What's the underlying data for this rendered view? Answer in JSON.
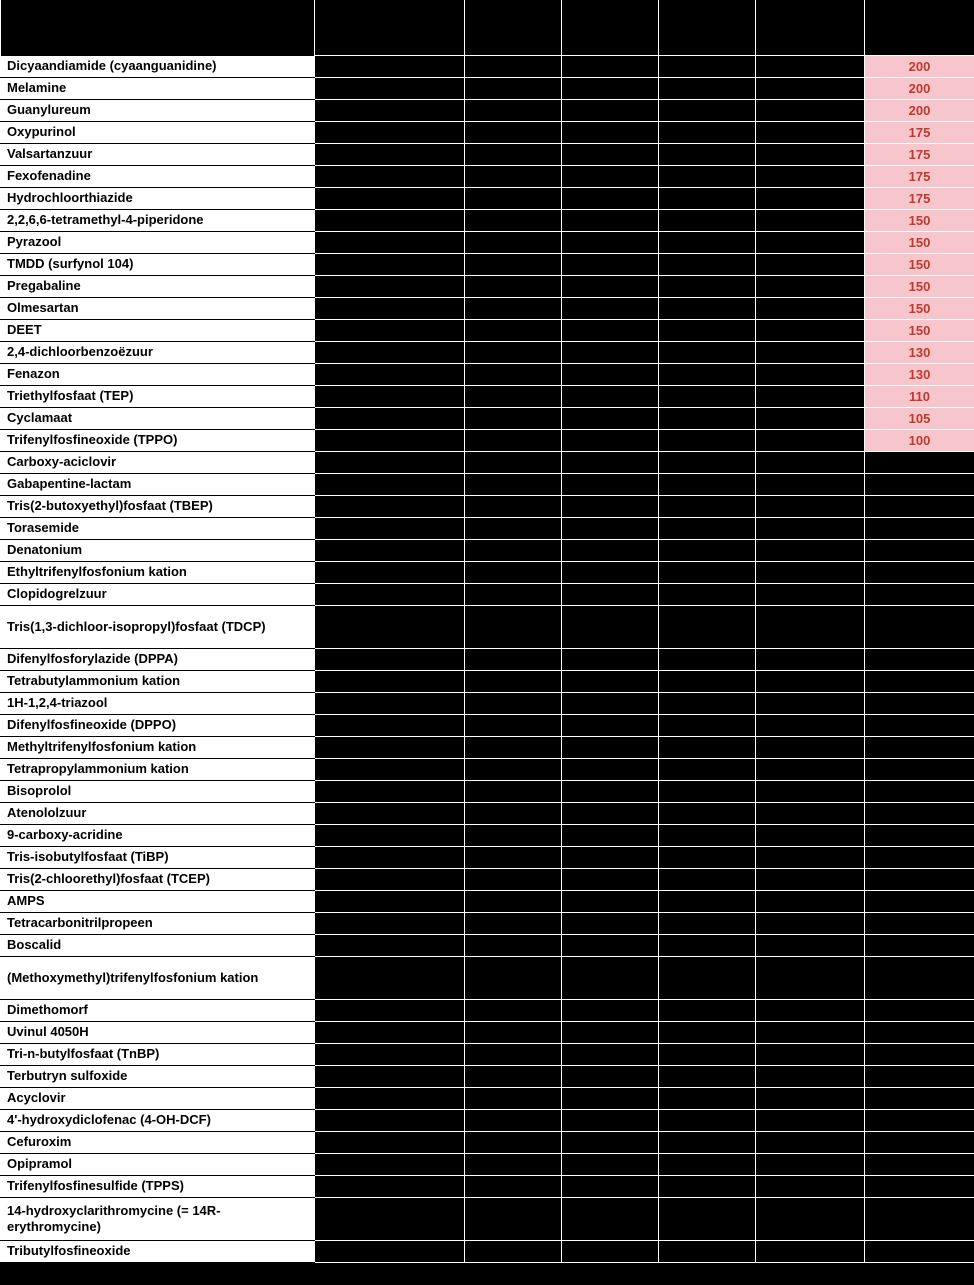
{
  "table": {
    "highlight_bg": "#f7c5cc",
    "highlight_fg": "#c0392b",
    "name_bg": "#ffffff",
    "name_fg": "#000000",
    "blank_bg": "#000000",
    "border_color": "#ffffff",
    "font_size_pt": 10,
    "rows": [
      {
        "name": "Dicyaandiamide (cyaanguanidine)",
        "value": 200,
        "highlight": true
      },
      {
        "name": "Melamine",
        "value": 200,
        "highlight": true
      },
      {
        "name": "Guanylureum",
        "value": 200,
        "highlight": true
      },
      {
        "name": "Oxypurinol",
        "value": 175,
        "highlight": true
      },
      {
        "name": "Valsartanzuur",
        "value": 175,
        "highlight": true
      },
      {
        "name": "Fexofenadine",
        "value": 175,
        "highlight": true
      },
      {
        "name": "Hydrochloorthiazide",
        "value": 175,
        "highlight": true
      },
      {
        "name": "2,2,6,6-tetramethyl-4-piperidone",
        "value": 150,
        "highlight": true
      },
      {
        "name": "Pyrazool",
        "value": 150,
        "highlight": true
      },
      {
        "name": "TMDD (surfynol 104)",
        "value": 150,
        "highlight": true
      },
      {
        "name": "Pregabaline",
        "value": 150,
        "highlight": true
      },
      {
        "name": "Olmesartan",
        "value": 150,
        "highlight": true
      },
      {
        "name": "DEET",
        "value": 150,
        "highlight": true
      },
      {
        "name": "2,4-dichloorbenzoëzuur",
        "value": 130,
        "highlight": true
      },
      {
        "name": "Fenazon",
        "value": 130,
        "highlight": true
      },
      {
        "name": "Triethylfosfaat (TEP)",
        "value": 110,
        "highlight": true
      },
      {
        "name": "Cyclamaat",
        "value": 105,
        "highlight": true
      },
      {
        "name": "Trifenylfosfineoxide (TPPO)",
        "value": 100,
        "highlight": true
      },
      {
        "name": "Carboxy-aciclovir",
        "value": null,
        "highlight": false
      },
      {
        "name": "Gabapentine-lactam",
        "value": null,
        "highlight": false
      },
      {
        "name": "Tris(2-butoxyethyl)fosfaat (TBEP)",
        "value": null,
        "highlight": false
      },
      {
        "name": "Torasemide",
        "value": null,
        "highlight": false
      },
      {
        "name": "Denatonium",
        "value": null,
        "highlight": false
      },
      {
        "name": "Ethyltrifenylfosfonium kation",
        "value": null,
        "highlight": false
      },
      {
        "name": "Clopidogrelzuur",
        "value": null,
        "highlight": false
      },
      {
        "name": "Tris(1,3-dichloor-isopropyl)fosfaat (TDCP)",
        "value": null,
        "highlight": false,
        "tall": true
      },
      {
        "name": "Difenylfosforylazide (DPPA)",
        "value": null,
        "highlight": false
      },
      {
        "name": "Tetrabutylammonium kation",
        "value": null,
        "highlight": false
      },
      {
        "name": "1H-1,2,4-triazool",
        "value": null,
        "highlight": false
      },
      {
        "name": "Difenylfosfineoxide (DPPO)",
        "value": null,
        "highlight": false
      },
      {
        "name": "Methyltrifenylfosfonium kation",
        "value": null,
        "highlight": false
      },
      {
        "name": "Tetrapropylammonium kation",
        "value": null,
        "highlight": false
      },
      {
        "name": "Bisoprolol",
        "value": null,
        "highlight": false
      },
      {
        "name": "Atenololzuur",
        "value": null,
        "highlight": false
      },
      {
        "name": "9-carboxy-acridine",
        "value": null,
        "highlight": false
      },
      {
        "name": "Tris-isobutylfosfaat (TiBP)",
        "value": null,
        "highlight": false
      },
      {
        "name": "Tris(2-chloorethyl)fosfaat (TCEP)",
        "value": null,
        "highlight": false
      },
      {
        "name": "AMPS",
        "value": null,
        "highlight": false
      },
      {
        "name": "Tetracarbonitrilpropeen",
        "value": null,
        "highlight": false
      },
      {
        "name": "Boscalid",
        "value": null,
        "highlight": false
      },
      {
        "name": "(Methoxymethyl)trifenylfosfonium kation",
        "value": null,
        "highlight": false,
        "tall": true
      },
      {
        "name": "Dimethomorf",
        "value": null,
        "highlight": false
      },
      {
        "name": "Uvinul 4050H",
        "value": null,
        "highlight": false
      },
      {
        "name": "Tri-n-butylfosfaat (TnBP)",
        "value": null,
        "highlight": false
      },
      {
        "name": "Terbutryn sulfoxide",
        "value": null,
        "highlight": false
      },
      {
        "name": "Acyclovir",
        "value": null,
        "highlight": false
      },
      {
        "name": "4'-hydroxydiclofenac (4-OH-DCF)",
        "value": null,
        "highlight": false
      },
      {
        "name": "Cefuroxim",
        "value": null,
        "highlight": false
      },
      {
        "name": "Opipramol",
        "value": null,
        "highlight": false
      },
      {
        "name": "Trifenylfosfinesulfide (TPPS)",
        "value": null,
        "highlight": false
      },
      {
        "name": "14-hydroxyclarithromycine (= 14R-erythromycine)",
        "value": null,
        "highlight": false,
        "tall": true
      },
      {
        "name": "Tributylfosfineoxide",
        "value": null,
        "highlight": false
      }
    ]
  }
}
